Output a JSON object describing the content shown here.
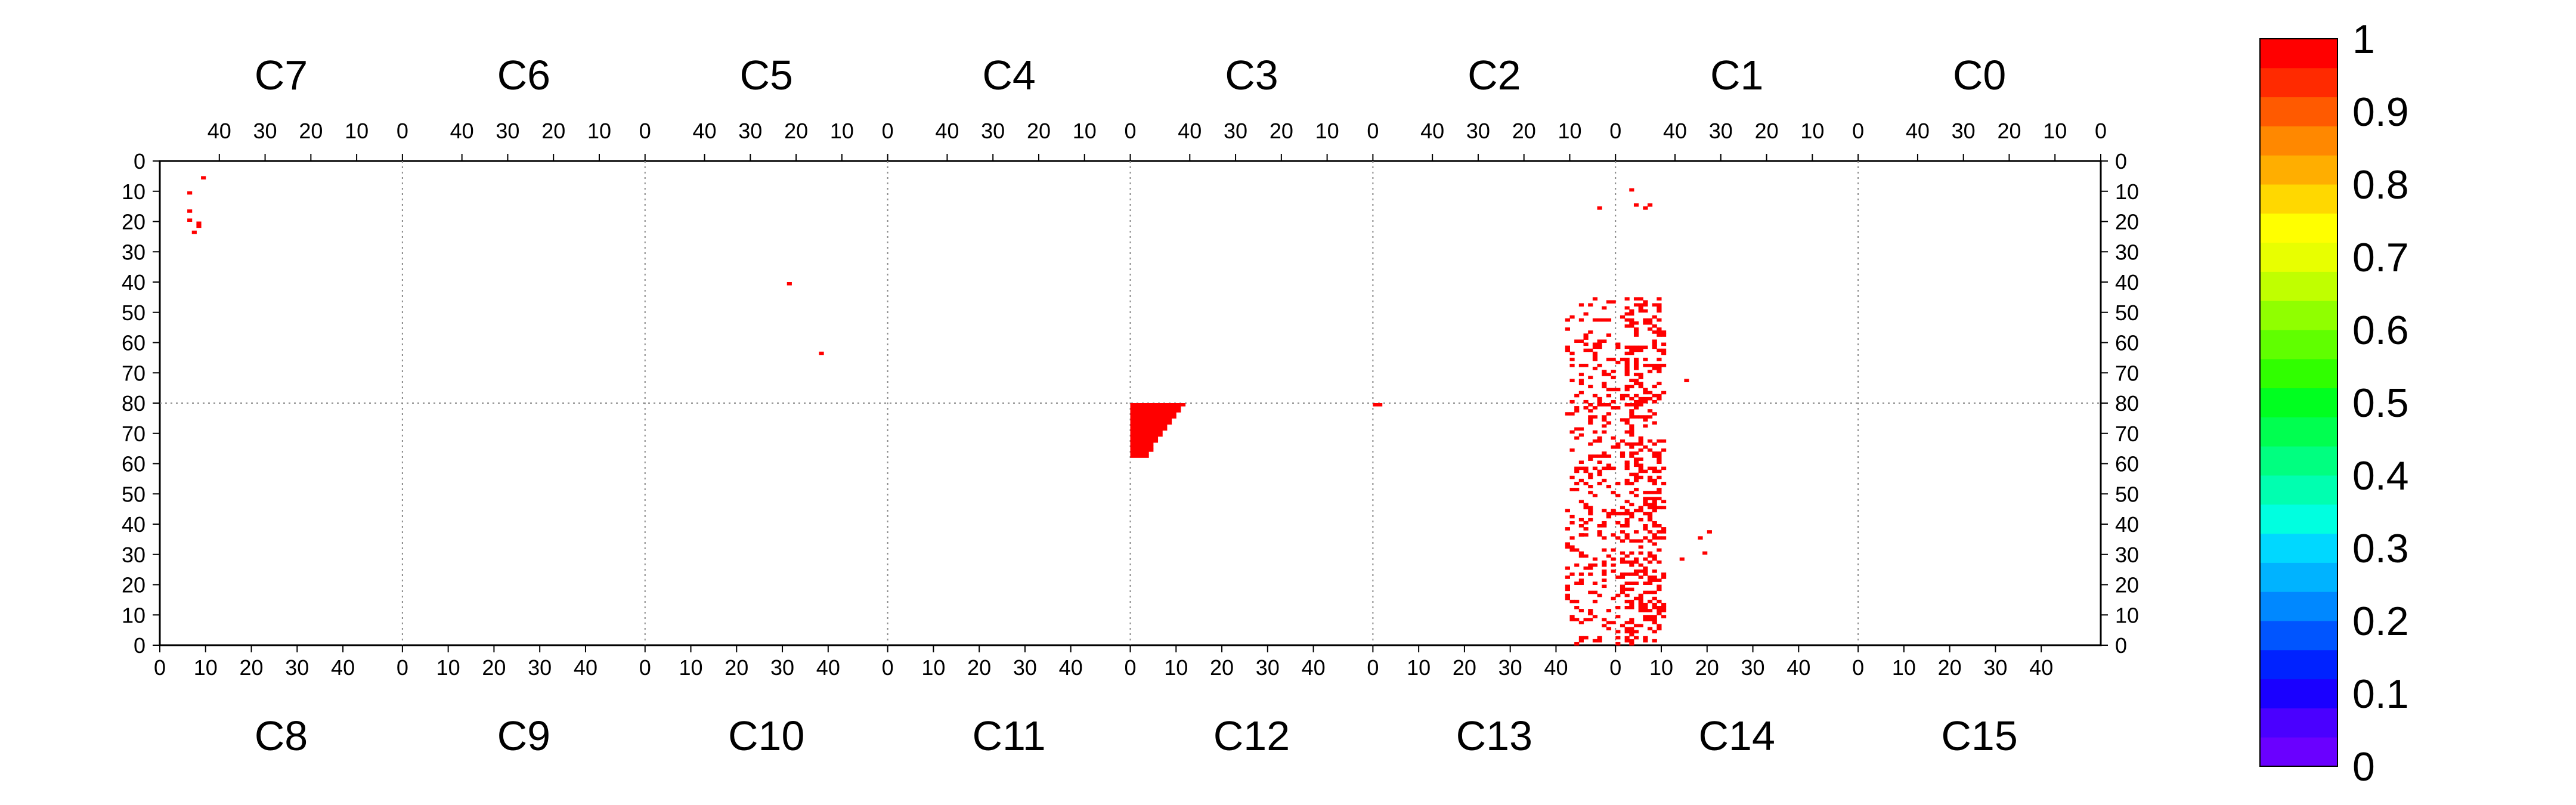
{
  "chart_data": {
    "type": "heatmap",
    "top_chips": [
      "C7",
      "C6",
      "C5",
      "C4",
      "C3",
      "C2",
      "C1",
      "C0"
    ],
    "bottom_chips": [
      "C8",
      "C9",
      "C10",
      "C11",
      "C12",
      "C13",
      "C14",
      "C15"
    ],
    "top_x_ticks": [
      "40",
      "30",
      "20",
      "10",
      "0"
    ],
    "bottom_x_ticks": [
      "0",
      "10",
      "20",
      "30",
      "40"
    ],
    "y_ticks": [
      "0",
      "10",
      "20",
      "30",
      "40",
      "50",
      "60",
      "70",
      "80",
      "70",
      "60",
      "50",
      "40",
      "30",
      "20",
      "10",
      "0"
    ],
    "colorbar": {
      "labels": [
        "0",
        "0.1",
        "0.2",
        "0.3",
        "0.4",
        "0.5",
        "0.6",
        "0.7",
        "0.8",
        "0.9",
        "1"
      ],
      "colors": [
        "#6a00ff",
        "#4a00ff",
        "#1a00ff",
        "#0022ff",
        "#0055ff",
        "#0088ff",
        "#00b3ff",
        "#00d8ff",
        "#00ffe0",
        "#00ffb0",
        "#00ff80",
        "#00ff50",
        "#00ff20",
        "#30ff00",
        "#60ff00",
        "#90ff00",
        "#c0ff00",
        "#e8ff00",
        "#ffff00",
        "#ffd800",
        "#ffae00",
        "#ff8800",
        "#ff5a00",
        "#ff2a00",
        "#ff0000"
      ]
    },
    "cell_color": "#ff0000",
    "grid": "dotted chip boundaries",
    "hits": [
      {
        "chip": "C7",
        "col": 43,
        "row": 5
      },
      {
        "chip": "C7",
        "col": 46,
        "row": 10
      },
      {
        "chip": "C7",
        "col": 46,
        "row": 16
      },
      {
        "chip": "C7",
        "col": 46,
        "row": 19
      },
      {
        "chip": "C7",
        "col": 44,
        "row": 20
      },
      {
        "chip": "C7",
        "col": 44,
        "row": 21
      },
      {
        "chip": "C7",
        "col": 45,
        "row": 23
      },
      {
        "chip": "C5",
        "col": 21,
        "row": 40
      },
      {
        "chip": "C5",
        "col": 14,
        "row": 63
      },
      {
        "chip": "C2",
        "col": 3,
        "row": 15
      },
      {
        "chip": "C1",
        "col": 49,
        "row": 9
      },
      {
        "chip": "C1",
        "col": 48,
        "row": 14
      },
      {
        "chip": "C1",
        "col": 46,
        "row": 15
      },
      {
        "chip": "C1",
        "col": 45,
        "row": 14
      },
      {
        "chip": "C13",
        "col": 0,
        "row": 79
      },
      {
        "chip": "C13",
        "col": 1,
        "row": 79
      },
      {
        "chip": "C13",
        "col": 47,
        "row": 10
      },
      {
        "chip": "C14",
        "col": 3,
        "row": 12
      },
      {
        "chip": "C14",
        "col": 3,
        "row": 7
      },
      {
        "chip": "C14",
        "col": 4,
        "row": 6
      },
      {
        "chip": "C14",
        "col": 4,
        "row": 27
      },
      {
        "chip": "C13",
        "col": 45,
        "row": 36
      }
    ],
    "blocks": [
      {
        "chip": "C12",
        "rows_from": 62,
        "rows_to": 80,
        "col_from": 0,
        "col_to": 12,
        "shape": "triangle-stair"
      }
    ],
    "clusters": [
      {
        "chips": "C2/C1 (top) and C13/C14 (bottom)",
        "col_span": "near 0 boundary, about -12 to +10",
        "row_span": "about 45 top to 35 bottom",
        "density": 0.18
      }
    ]
  }
}
